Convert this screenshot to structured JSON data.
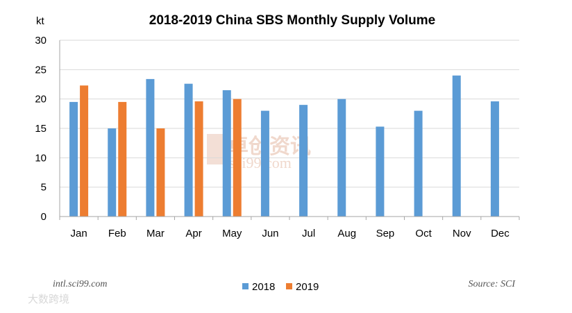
{
  "chart_data": {
    "type": "bar",
    "title": "2018-2019 China SBS Monthly Supply Volume",
    "unit": "kt",
    "categories": [
      "Jan",
      "Feb",
      "Mar",
      "Apr",
      "May",
      "Jun",
      "Jul",
      "Aug",
      "Sep",
      "Oct",
      "Nov",
      "Dec"
    ],
    "series": [
      {
        "name": "2018",
        "color": "#5b9bd5",
        "values": [
          19.5,
          15.0,
          23.4,
          22.6,
          21.5,
          18.0,
          19.0,
          20.0,
          15.3,
          18.0,
          24.0,
          19.6
        ]
      },
      {
        "name": "2019",
        "color": "#ed7d31",
        "values": [
          22.3,
          19.5,
          15.0,
          19.6,
          20.0,
          null,
          null,
          null,
          null,
          null,
          null,
          null
        ]
      }
    ],
    "ylim": [
      0,
      30
    ],
    "yticks": [
      0,
      5,
      10,
      15,
      20,
      25,
      30
    ],
    "grid": true,
    "legend": "bottom-center"
  },
  "footer": {
    "left": "intl.sci99.com",
    "right": "Source: SCI"
  },
  "watermark": {
    "cn": "卓创资讯",
    "en": "sci99.com",
    "corner": "大数跨境"
  },
  "colors": {
    "grid": "#d9d9d9",
    "axis": "#a6a6a6"
  }
}
